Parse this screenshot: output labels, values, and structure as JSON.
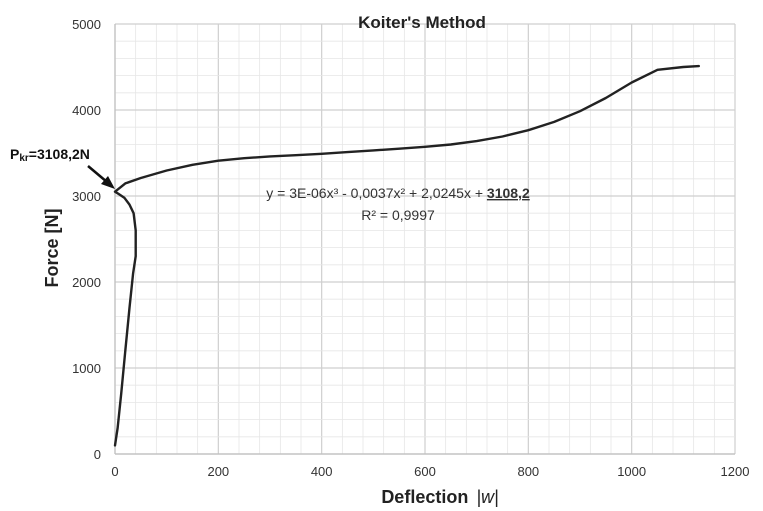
{
  "chart_data": {
    "type": "line",
    "title": "Koiter's Method",
    "xlabel": "Deflection",
    "xlabel_suffix": "|w|",
    "ylabel": "Force [N]",
    "xlim": [
      0,
      1200
    ],
    "ylim": [
      0,
      5000
    ],
    "xticks": [
      0,
      200,
      400,
      600,
      800,
      1000,
      1200
    ],
    "yticks": [
      0,
      1000,
      2000,
      3000,
      4000,
      5000
    ],
    "grid": true,
    "series": [
      {
        "x": [
          0,
          5,
          12,
          20,
          28,
          35,
          40,
          40,
          36,
          28,
          18,
          8,
          0,
          20,
          50,
          100,
          150,
          200,
          250,
          300,
          350,
          400,
          450,
          500,
          550,
          600,
          650,
          700,
          750,
          800,
          850,
          900,
          950,
          1000,
          1050,
          1100,
          1130
        ],
        "y": [
          100,
          300,
          700,
          1200,
          1700,
          2100,
          2300,
          2600,
          2800,
          2900,
          2980,
          3020,
          3050,
          3146,
          3209,
          3296,
          3363,
          3410,
          3440,
          3460,
          3475,
          3491,
          3510,
          3530,
          3550,
          3572,
          3599,
          3638,
          3692,
          3765,
          3862,
          3986,
          4140,
          4320,
          4468,
          4500,
          4510
        ]
      }
    ],
    "annotations": {
      "trendline_equation_prefix": "y = 3E-06x³ - 0,0037x² + 2,0245x + ",
      "trendline_equation_bold": "3108,2",
      "r_squared": "R² = 0,9997",
      "critical_label_prefix": "P",
      "critical_label_sub": "kr",
      "critical_label_value": "=3108,2N",
      "critical_point": [
        0,
        3108.2
      ]
    },
    "colors": {
      "line": "#222222",
      "grid": "#d9d9d9",
      "background": "#ffffff"
    }
  }
}
